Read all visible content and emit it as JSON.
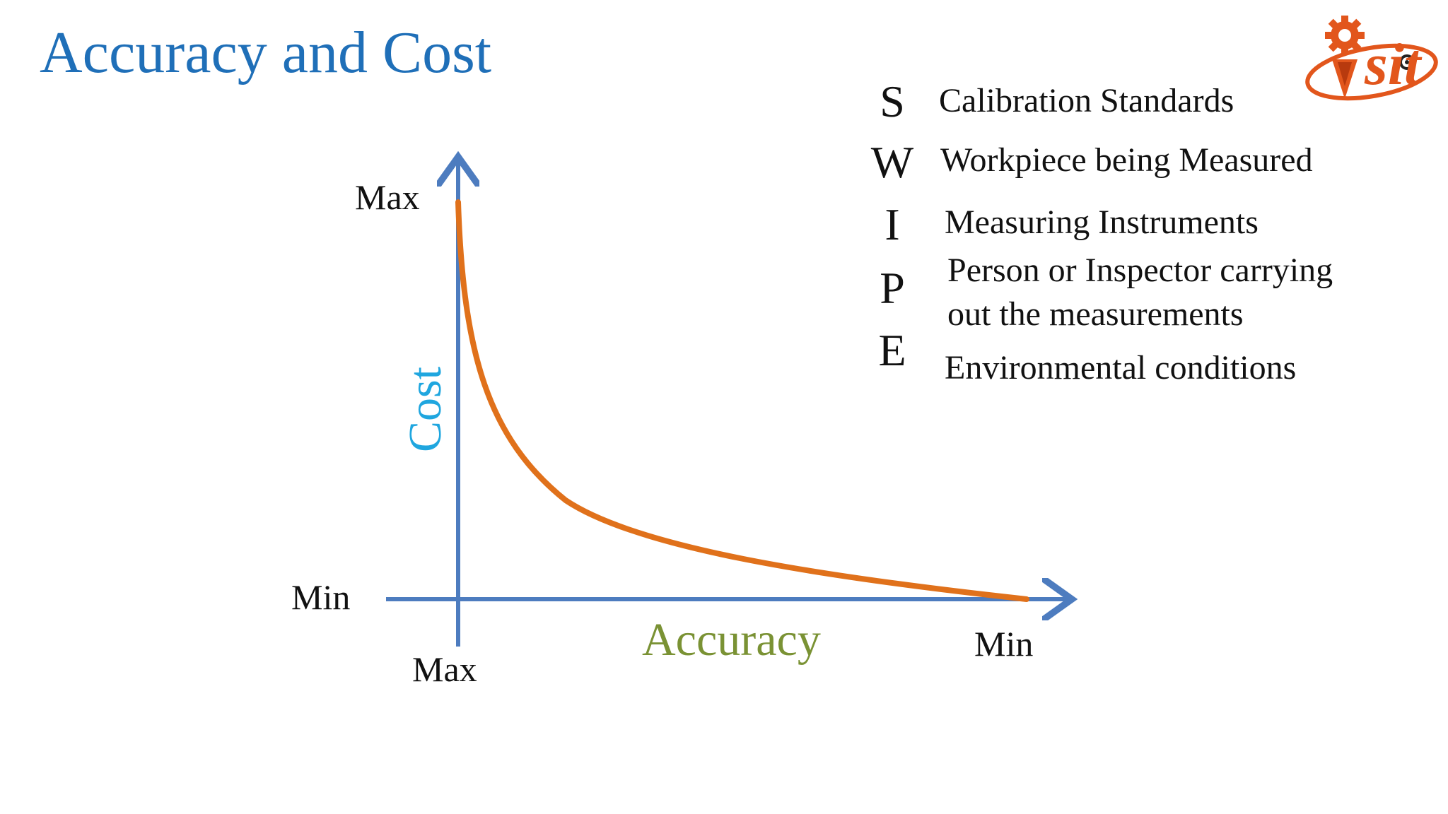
{
  "title": "Accuracy and Cost",
  "logo_text": "sit",
  "swipe": [
    {
      "letter": "S",
      "text": "Calibration Standards"
    },
    {
      "letter": "W",
      "text": "Workpiece being Measured"
    },
    {
      "letter": "I",
      "text": "Measuring Instruments"
    },
    {
      "letter": "P",
      "text_line1": "Person   or  Inspector  carrying",
      "text_line2": "out the measurements"
    },
    {
      "letter": "E",
      "text": "Environmental conditions"
    }
  ],
  "diagram": {
    "y_axis_label": "Cost",
    "x_axis_label": "Accuracy",
    "y_max_label": "Max",
    "y_min_label": "Min",
    "x_max_label": "Max",
    "x_min_label": "Min",
    "curve_color": "#e0711b",
    "axis_color": "#4d7cbf",
    "y_axis_color": "#1fa6df",
    "x_axis_color": "#7a9234"
  }
}
